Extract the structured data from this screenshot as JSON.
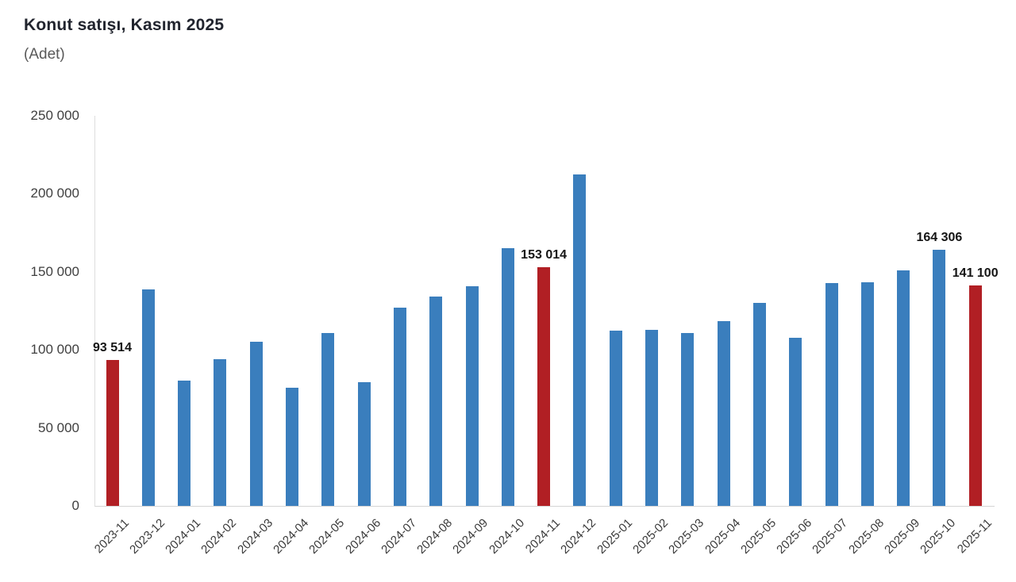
{
  "page": {
    "title": "Konut satışı, Kasım 2025",
    "subtitle": "(Adet)"
  },
  "chart_data": {
    "type": "bar",
    "title": "Konut satışı, Kasım 2025",
    "unit_label": "(Adet)",
    "categories": [
      "2023-11",
      "2023-12",
      "2024-01",
      "2024-02",
      "2024-03",
      "2024-04",
      "2024-05",
      "2024-06",
      "2024-07",
      "2024-08",
      "2024-09",
      "2024-10",
      "2024-11",
      "2024-12",
      "2025-01",
      "2025-02",
      "2025-03",
      "2025-04",
      "2025-05",
      "2025-06",
      "2025-07",
      "2025-08",
      "2025-09",
      "2025-10",
      "2025-11"
    ],
    "values": [
      93514,
      138577,
      80308,
      93902,
      105394,
      75569,
      110588,
      79313,
      127088,
      134155,
      140919,
      165138,
      153014,
      212637,
      112173,
      112818,
      110795,
      118359,
      130025,
      107723,
      142858,
      143319,
      150738,
      164306,
      141100
    ],
    "highlighted_categories": [
      "2023-11",
      "2024-11",
      "2025-11"
    ],
    "data_labels": [
      {
        "category": "2023-11",
        "text": "93 514"
      },
      {
        "category": "2024-11",
        "text": "153 014"
      },
      {
        "category": "2025-10",
        "text": "164 306"
      },
      {
        "category": "2025-11",
        "text": "141 100"
      }
    ],
    "colors": {
      "bar": "#3a7ebd",
      "highlight": "#b11f24",
      "axis_line": "#d8d8d8",
      "tick_text": "#3f3f3f",
      "label_text": "#141414"
    },
    "ylim": [
      0,
      250000
    ],
    "yticks": [
      {
        "value": 0,
        "label": "0"
      },
      {
        "value": 50000,
        "label": "50 000"
      },
      {
        "value": 100000,
        "label": "100 000"
      },
      {
        "value": 150000,
        "label": "150 000"
      },
      {
        "value": 200000,
        "label": "200 000"
      },
      {
        "value": 250000,
        "label": "250 000"
      }
    ],
    "xlabel": "",
    "ylabel": "",
    "grid": false,
    "legend_position": "none"
  }
}
